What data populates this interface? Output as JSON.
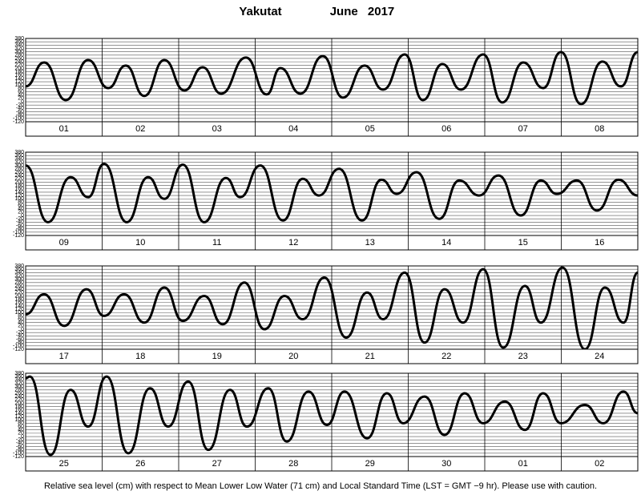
{
  "header": {
    "station": "Yakutat",
    "month": "June 2017"
  },
  "note": "Relative sea level (cm) with respect to Mean Lower Low Water (71 cm) and Local Standard Time (LST = GMT −9 hr). Please use with caution.",
  "chart_data": [
    {
      "type": "line",
      "color": "#000000",
      "days": [
        "01",
        "02",
        "03",
        "04",
        "05",
        "06",
        "07",
        "08"
      ],
      "x": [
        0,
        5.8,
        12.6,
        19.6,
        25.9,
        31.4,
        37.2,
        43.5,
        49.8,
        55.5,
        61.3,
        69.1,
        75.6,
        79.9,
        86.2,
        93.2,
        99.5,
        106.3,
        112.1,
        118.9,
        124.6,
        130.7,
        136.5,
        143.5,
        149.5,
        156.1,
        162.3,
        167.9,
        174.2,
        180.9,
        186.7,
        192
      ],
      "values": [
        92,
        236,
        10,
        250,
        82,
        217,
        35,
        250,
        68,
        207,
        49,
        265,
        44,
        202,
        49,
        274,
        25,
        217,
        73,
        284,
        10,
        226,
        73,
        284,
        -4,
        236,
        82,
        298,
        -14,
        241,
        92,
        298
      ],
      "xlim": [
        0,
        192
      ],
      "xticks": [
        0,
        24,
        48,
        72,
        96,
        120,
        144,
        168,
        192
      ],
      "ylim": [
        -120,
        380
      ],
      "yticks": [
        -120,
        -100,
        -80,
        -60,
        -40,
        -20,
        0,
        20,
        40,
        60,
        80,
        100,
        120,
        140,
        160,
        180,
        200,
        220,
        240,
        260,
        280,
        300,
        320,
        340,
        360,
        380
      ],
      "grid": true
    },
    {
      "type": "line",
      "color": "#000000",
      "days": [
        "09",
        "10",
        "11",
        "12",
        "13",
        "14",
        "15",
        "16"
      ],
      "x": [
        0,
        7.0,
        14.1,
        19.6,
        24.6,
        31.7,
        38.4,
        43.5,
        49.3,
        56.0,
        62.8,
        67.3,
        73.6,
        80.7,
        86.9,
        92.0,
        98.3,
        105.5,
        111.6,
        116.4,
        122.6,
        129.7,
        136.0,
        142.2,
        148.3,
        155.3,
        161.6,
        166.6,
        172.9,
        179.2,
        185.9,
        192
      ],
      "values": [
        300,
        -40,
        230,
        110,
        310,
        -40,
        230,
        100,
        305,
        -40,
        225,
        110,
        300,
        -30,
        220,
        120,
        280,
        -30,
        215,
        130,
        260,
        -20,
        210,
        120,
        240,
        0,
        210,
        130,
        210,
        30,
        215,
        120
      ],
      "xlim": [
        0,
        192
      ],
      "xticks": [
        0,
        24,
        48,
        72,
        96,
        120,
        144,
        168,
        192
      ],
      "ylim": [
        -120,
        380
      ],
      "yticks": [
        -120,
        -100,
        -80,
        -60,
        -40,
        -20,
        0,
        20,
        40,
        60,
        80,
        100,
        120,
        140,
        160,
        180,
        200,
        220,
        240,
        260,
        280,
        300,
        320,
        340,
        360,
        380
      ],
      "grid": true
    },
    {
      "type": "line",
      "color": "#000000",
      "days": [
        "17",
        "18",
        "19",
        "20",
        "21",
        "22",
        "23",
        "24"
      ],
      "x": [
        0,
        5.8,
        12.1,
        19.1,
        24.6,
        30.9,
        37.2,
        43.5,
        49.3,
        56.0,
        61.8,
        68.6,
        74.9,
        81.2,
        86.9,
        93.7,
        100.5,
        107.1,
        112.1,
        118.9,
        125.1,
        131.4,
        137.2,
        143.5,
        149.8,
        156.6,
        161.6,
        168.4,
        175.4,
        181.7,
        187.5,
        192
      ],
      "values": [
        90,
        210,
        20,
        240,
        80,
        210,
        40,
        250,
        50,
        200,
        30,
        280,
        0,
        200,
        60,
        310,
        -50,
        220,
        60,
        340,
        -80,
        240,
        40,
        360,
        -110,
        260,
        40,
        370,
        -120,
        250,
        40,
        340
      ],
      "xlim": [
        0,
        192
      ],
      "xticks": [
        0,
        24,
        48,
        72,
        96,
        120,
        144,
        168,
        192
      ],
      "ylim": [
        -120,
        380
      ],
      "yticks": [
        -120,
        -100,
        -80,
        -60,
        -40,
        -20,
        0,
        20,
        40,
        60,
        80,
        100,
        120,
        140,
        160,
        180,
        200,
        220,
        240,
        260,
        280,
        300,
        320,
        340,
        360,
        380
      ],
      "grid": true
    },
    {
      "type": "line",
      "color": "#000000",
      "days": [
        "25",
        "26",
        "27",
        "28",
        "29",
        "30",
        "01",
        "02"
      ],
      "x": [
        0,
        1.3,
        7.8,
        14.1,
        19.6,
        25.4,
        32.2,
        39.0,
        44.7,
        51.0,
        57.3,
        64.1,
        69.4,
        76.1,
        81.9,
        88.7,
        94.5,
        100.0,
        107.1,
        113.3,
        118.4,
        125.1,
        131.4,
        137.7,
        143.5,
        150.3,
        156.6,
        162.3,
        167.9,
        175.4,
        181.2,
        187.5,
        192
      ],
      "values": [
        350,
        360,
        -110,
        280,
        60,
        360,
        -100,
        290,
        60,
        330,
        -80,
        280,
        60,
        290,
        -30,
        270,
        70,
        270,
        -10,
        260,
        80,
        240,
        10,
        260,
        80,
        210,
        40,
        260,
        80,
        190,
        80,
        270,
        140
      ],
      "xlim": [
        0,
        192
      ],
      "xticks": [
        0,
        24,
        48,
        72,
        96,
        120,
        144,
        168,
        192
      ],
      "ylim": [
        -120,
        380
      ],
      "yticks": [
        -120,
        -100,
        -80,
        -60,
        -40,
        -20,
        0,
        20,
        40,
        60,
        80,
        100,
        120,
        140,
        160,
        180,
        200,
        220,
        240,
        260,
        280,
        300,
        320,
        340,
        360,
        380
      ],
      "grid": true
    }
  ]
}
